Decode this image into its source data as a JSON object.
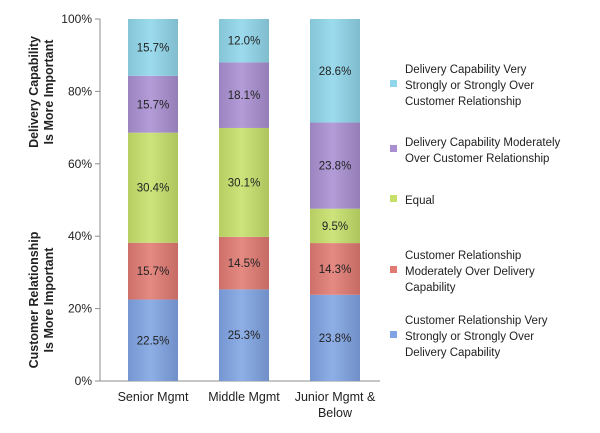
{
  "chart_data": {
    "type": "bar",
    "stacked": true,
    "categories": [
      [
        "Senior Mgmt"
      ],
      [
        "Middle Mgmt"
      ],
      [
        "Junior Mgmt &",
        "Below"
      ]
    ],
    "series": [
      {
        "name": [
          "Customer Relationship Very",
          "Strongly or Strongly Over",
          "Delivery Capability"
        ],
        "color": "#7fa3e3",
        "values": [
          22.5,
          25.3,
          23.8
        ]
      },
      {
        "name": [
          "Customer Relationship",
          "Moderately Over Delivery",
          "Capability"
        ],
        "color": "#e07a72",
        "values": [
          15.7,
          14.5,
          14.3
        ]
      },
      {
        "name": [
          "Equal"
        ],
        "color": "#c6e06a",
        "values": [
          30.4,
          30.1,
          9.5
        ]
      },
      {
        "name": [
          "Delivery Capability Moderately",
          "Over Customer Relationship"
        ],
        "color": "#a98fd1",
        "values": [
          15.7,
          18.1,
          23.8
        ]
      },
      {
        "name": [
          "Delivery Capability Very",
          "Strongly or Strongly Over",
          "Customer Relationship"
        ],
        "color": "#8fd6ea",
        "values": [
          15.7,
          12.0,
          28.6
        ]
      }
    ],
    "value_labels": [
      [
        "22.5%",
        "15.7%",
        "30.4%",
        "15.7%",
        "15.7%"
      ],
      [
        "25.3%",
        "14.5%",
        "30.1%",
        "18.1%",
        "12.0%"
      ],
      [
        "23.8%",
        "14.3%",
        "9.5%",
        "23.8%",
        "28.6%"
      ]
    ],
    "yticks": [
      "0%",
      "20%",
      "40%",
      "60%",
      "80%",
      "100%"
    ],
    "ylim": [
      0,
      100
    ],
    "ylabel_top": [
      "Delivery Capability",
      "Is More Important"
    ],
    "ylabel_bottom": [
      "Customer Relationship",
      "Is More Important"
    ],
    "legend_position": "right",
    "grid": false
  }
}
